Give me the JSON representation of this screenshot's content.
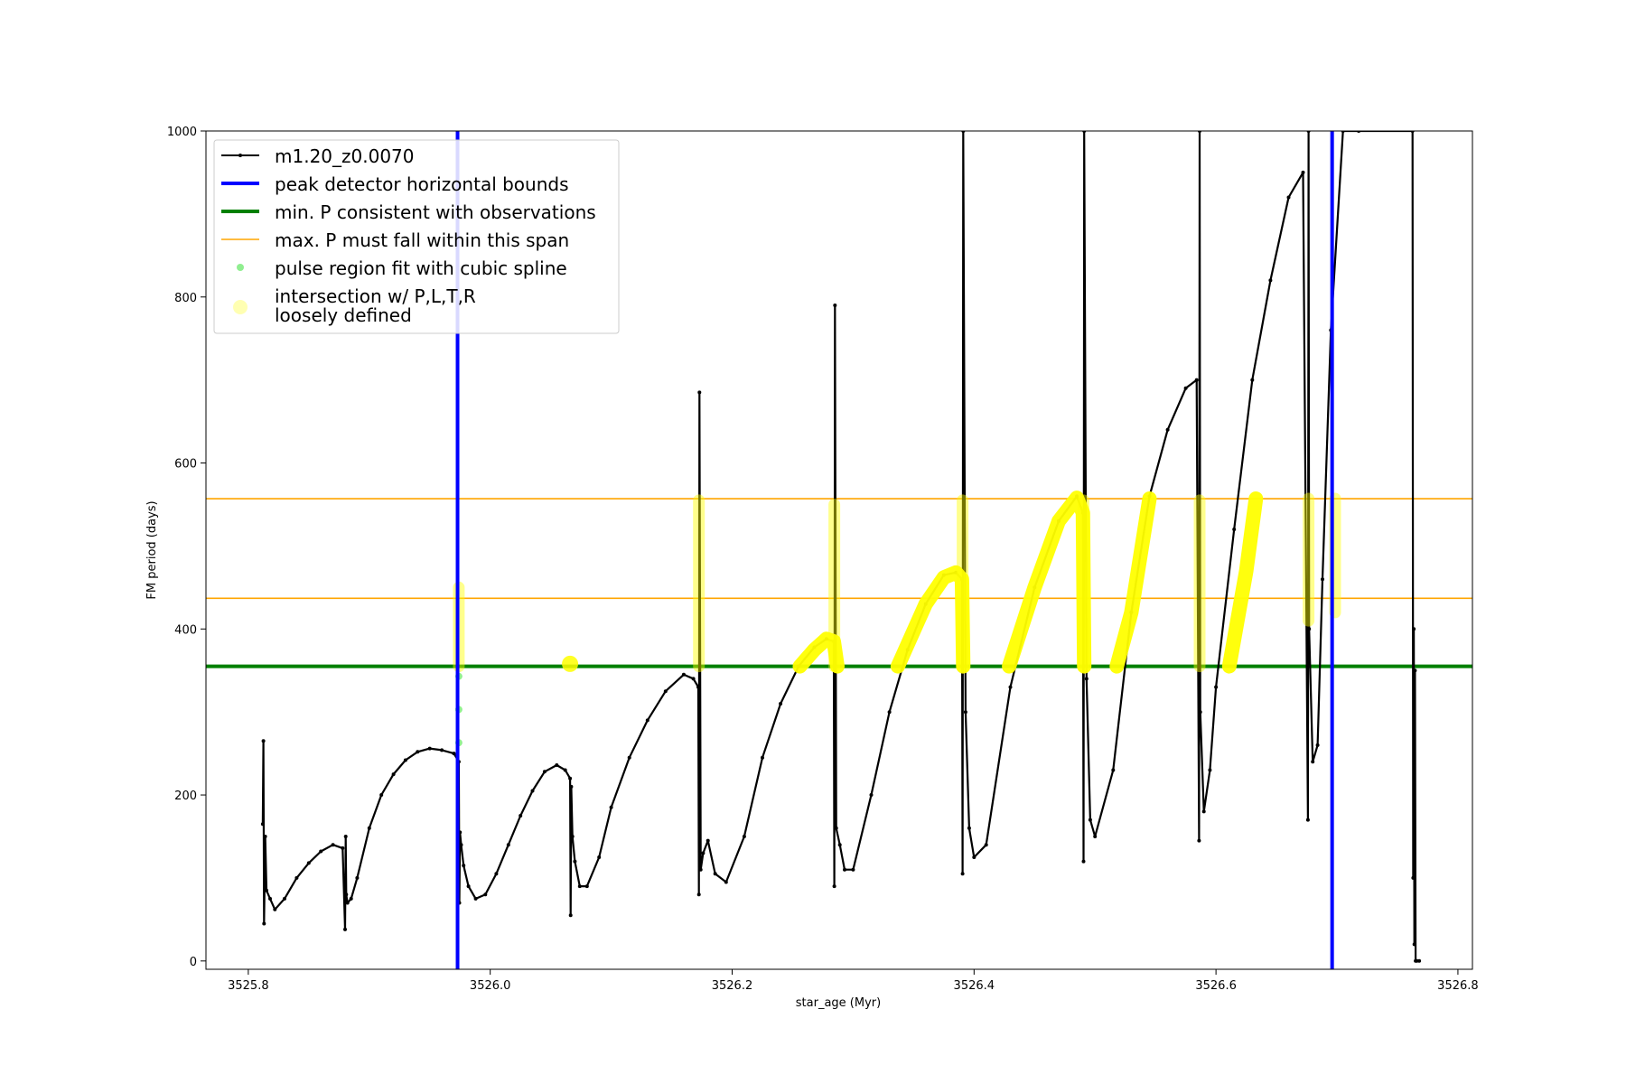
{
  "chart_data": {
    "type": "line",
    "xlabel": "star_age (Myr)",
    "ylabel": "FM period (days)",
    "xlim": [
      3525.765,
      3526.812
    ],
    "ylim": [
      -10,
      1000
    ],
    "x_ticks": [
      3525.8,
      3526.0,
      3526.2,
      3526.4,
      3526.6,
      3526.8
    ],
    "x_tick_labels": [
      "3525.8",
      "3526.0",
      "3526.2",
      "3526.4",
      "3526.6",
      "3526.8"
    ],
    "y_ticks": [
      0,
      200,
      400,
      600,
      800,
      1000
    ],
    "y_tick_labels": [
      "0",
      "200",
      "400",
      "600",
      "800",
      "1000"
    ],
    "grid": false,
    "legend_position": "top-left",
    "legend": [
      {
        "key": "track",
        "label": "m1.20_z0.0070",
        "color": "#000000",
        "style": "line-marker"
      },
      {
        "key": "vbounds",
        "label": "peak detector horizontal bounds",
        "color": "#0000ff",
        "style": "thick-line"
      },
      {
        "key": "minp",
        "label": "min. P consistent with observations",
        "color": "#008000",
        "style": "thick-line"
      },
      {
        "key": "maxp",
        "label": "max. P must fall within this span",
        "color": "#ffa500",
        "style": "thin-line"
      },
      {
        "key": "pulse",
        "label": "pulse region fit with cubic spline",
        "color": "#90ee90",
        "style": "dot"
      },
      {
        "key": "inter",
        "label": "intersection w/ P,L,T,R",
        "label2": "loosely defined",
        "color": "#ffff00",
        "style": "big-dot"
      }
    ],
    "vertical_bounds": [
      3525.973,
      3526.696
    ],
    "min_period": 355,
    "max_period_span": [
      437,
      557
    ],
    "series": [
      {
        "name": "m1.20_z0.0070",
        "color": "#000000",
        "x": [
          3525.812,
          3525.8125,
          3525.813,
          3525.814,
          3525.815,
          3525.818,
          3525.822,
          3525.83,
          3525.84,
          3525.85,
          3525.86,
          3525.87,
          3525.878,
          3525.88,
          3525.8805,
          3525.881,
          3525.882,
          3525.885,
          3525.89,
          3525.9,
          3525.91,
          3525.92,
          3525.93,
          3525.94,
          3525.95,
          3525.96,
          3525.97,
          3525.974,
          3525.9745,
          3525.975,
          3525.976,
          3525.978,
          3525.982,
          3525.988,
          3525.996,
          3526.005,
          3526.015,
          3526.025,
          3526.035,
          3526.045,
          3526.055,
          3526.062,
          3526.066,
          3526.0665,
          3526.067,
          3526.068,
          3526.07,
          3526.074,
          3526.08,
          3526.09,
          3526.1,
          3526.115,
          3526.13,
          3526.145,
          3526.16,
          3526.168,
          3526.172,
          3526.1725,
          3526.173,
          3526.174,
          3526.176,
          3526.18,
          3526.186,
          3526.195,
          3526.21,
          3526.225,
          3526.24,
          3526.255,
          3526.268,
          3526.278,
          3526.284,
          3526.2845,
          3526.285,
          3526.286,
          3526.289,
          3526.293,
          3526.3,
          3526.315,
          3526.33,
          3526.345,
          3526.36,
          3526.375,
          3526.385,
          3526.39,
          3526.3905,
          3526.391,
          3526.393,
          3526.396,
          3526.4,
          3526.41,
          3526.43,
          3526.45,
          3526.47,
          3526.485,
          3526.49,
          3526.4905,
          3526.491,
          3526.493,
          3526.496,
          3526.5,
          3526.515,
          3526.53,
          3526.545,
          3526.56,
          3526.575,
          3526.584,
          3526.586,
          3526.5865,
          3526.587,
          3526.59,
          3526.595,
          3526.6,
          3526.615,
          3526.63,
          3526.645,
          3526.66,
          3526.672,
          3526.676,
          3526.6765,
          3526.677,
          3526.68,
          3526.684,
          3526.688,
          3526.695,
          3526.705,
          3526.718,
          3526.7625,
          3526.763,
          3526.7635,
          3526.764,
          3526.7645,
          3526.765,
          3526.766,
          3526.768
        ],
        "y": [
          165,
          265,
          45,
          150,
          85,
          75,
          62,
          75,
          100,
          118,
          132,
          140,
          136,
          38,
          150,
          80,
          70,
          75,
          100,
          160,
          200,
          225,
          242,
          252,
          256,
          254,
          250,
          240,
          70,
          155,
          140,
          115,
          90,
          75,
          80,
          105,
          140,
          175,
          205,
          228,
          236,
          230,
          220,
          55,
          210,
          150,
          120,
          90,
          90,
          125,
          185,
          245,
          290,
          325,
          345,
          340,
          330,
          80,
          685,
          110,
          130,
          145,
          105,
          95,
          150,
          245,
          310,
          355,
          378,
          388,
          385,
          90,
          790,
          160,
          140,
          110,
          110,
          200,
          300,
          375,
          430,
          465,
          468,
          460,
          105,
          1000,
          300,
          160,
          125,
          140,
          330,
          450,
          530,
          560,
          540,
          120,
          1000,
          340,
          170,
          150,
          230,
          420,
          560,
          640,
          690,
          700,
          145,
          1000,
          300,
          180,
          230,
          330,
          520,
          700,
          820,
          920,
          950,
          170,
          1000,
          400,
          240,
          260,
          460,
          760,
          1000,
          1000,
          1000,
          100,
          400,
          20,
          350,
          0,
          0,
          0
        ]
      }
    ],
    "pulse_points": [
      {
        "x": 3525.974,
        "y": 263
      },
      {
        "x": 3525.974,
        "y": 303
      },
      {
        "x": 3525.974,
        "y": 343
      }
    ],
    "intersection_regions": [
      {
        "x": [
          3525.974,
          3525.974
        ],
        "y": [
          355,
          450
        ]
      },
      {
        "x": [
          3526.066
        ],
        "y": [
          358
        ]
      },
      {
        "x": [
          3526.1725,
          3526.1725
        ],
        "y": [
          355,
          555
        ]
      },
      {
        "x": [
          3526.256,
          3526.268,
          3526.278,
          3526.284,
          3526.287
        ],
        "y": [
          355,
          375,
          388,
          385,
          355
        ]
      },
      {
        "x": [
          3526.2845,
          3526.2845
        ],
        "y": [
          355,
          550
        ]
      },
      {
        "x": [
          3526.337,
          3526.36,
          3526.375,
          3526.385,
          3526.39,
          3526.391
        ],
        "y": [
          355,
          430,
          462,
          468,
          460,
          355
        ]
      },
      {
        "x": [
          3526.3905,
          3526.3905
        ],
        "y": [
          355,
          555
        ]
      },
      {
        "x": [
          3526.429,
          3526.45,
          3526.47,
          3526.485,
          3526.49,
          3526.491
        ],
        "y": [
          355,
          450,
          530,
          558,
          540,
          355
        ]
      },
      {
        "x": [
          3526.4905,
          3526.4905
        ],
        "y": [
          355,
          555
        ]
      },
      {
        "x": [
          3526.518,
          3526.53,
          3526.545
        ],
        "y": [
          355,
          420,
          557
        ]
      },
      {
        "x": [
          3526.5865,
          3526.5865
        ],
        "y": [
          355,
          555
        ]
      },
      {
        "x": [
          3526.611,
          3526.625,
          3526.633
        ],
        "y": [
          355,
          470,
          557
        ]
      },
      {
        "x": [
          3526.6765,
          3526.6765
        ],
        "y": [
          410,
          557
        ]
      },
      {
        "x": [
          3526.6985,
          3526.6985
        ],
        "y": [
          420,
          557
        ]
      }
    ]
  }
}
